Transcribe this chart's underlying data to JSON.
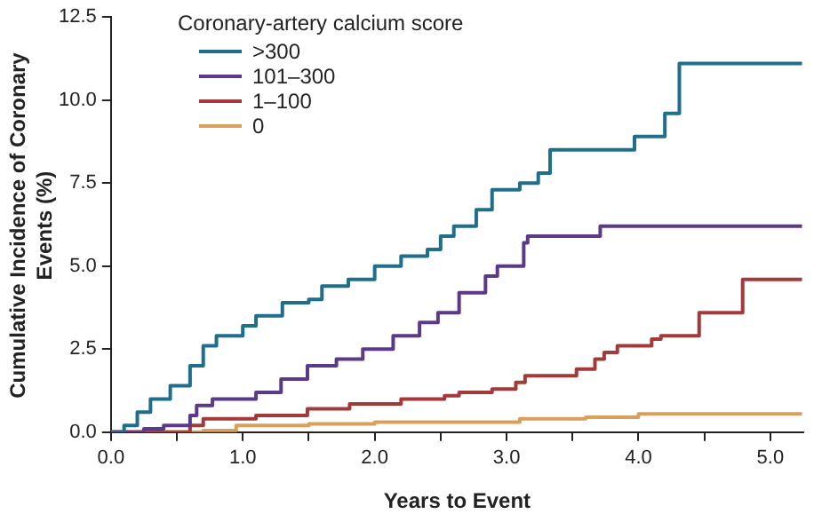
{
  "chart_data": {
    "type": "step",
    "xlabel": "Years to Event",
    "ylabel": "Cumulative Incidence of Coronary Events (%)",
    "legend_title": "Coronary-artery calcium score",
    "legend": "top left",
    "grid": false,
    "xlim": [
      0,
      5.25
    ],
    "ylim": [
      0,
      12.5
    ],
    "xticks": [
      {
        "value": 0,
        "label": "0.0"
      },
      {
        "value": 0.5,
        "label": null
      },
      {
        "value": 1,
        "label": "1.0"
      },
      {
        "value": 1.5,
        "label": null
      },
      {
        "value": 2,
        "label": "2.0"
      },
      {
        "value": 2.5,
        "label": null
      },
      {
        "value": 3,
        "label": "3.0"
      },
      {
        "value": 3.5,
        "label": null
      },
      {
        "value": 4,
        "label": "4.0"
      },
      {
        "value": 4.5,
        "label": null
      },
      {
        "value": 5,
        "label": "5.0"
      }
    ],
    "yticks": [
      {
        "value": 0,
        "label": "0.0"
      },
      {
        "value": 2.5,
        "label": "2.5"
      },
      {
        "value": 5,
        "label": "5.0"
      },
      {
        "value": 7.5,
        "label": "7.5"
      },
      {
        "value": 10,
        "label": "10.0"
      },
      {
        "value": 12.5,
        "label": "12.5"
      }
    ],
    "series": [
      {
        "name": ">300",
        "color": "#1f6e8c",
        "x": [
          0,
          0.1,
          0.2,
          0.3,
          0.45,
          0.6,
          0.7,
          0.8,
          1.0,
          1.1,
          1.3,
          1.5,
          1.6,
          1.8,
          2.0,
          2.2,
          2.4,
          2.5,
          2.6,
          2.77,
          2.89,
          3.1,
          3.24,
          3.33,
          3.97,
          4.2,
          4.31,
          5.24
        ],
        "values": [
          0,
          0.2,
          0.6,
          1.0,
          1.4,
          2.0,
          2.6,
          2.9,
          3.2,
          3.5,
          3.9,
          4.0,
          4.4,
          4.6,
          5.0,
          5.3,
          5.5,
          5.9,
          6.2,
          6.7,
          7.3,
          7.5,
          7.8,
          8.5,
          8.9,
          9.6,
          11.1,
          11.1
        ]
      },
      {
        "name": "101–300",
        "color": "#5b3a8a",
        "x": [
          0,
          0.25,
          0.4,
          0.6,
          0.65,
          0.77,
          1.1,
          1.29,
          1.49,
          1.71,
          1.91,
          2.14,
          2.34,
          2.48,
          2.64,
          2.84,
          2.93,
          3.13,
          3.16,
          3.71,
          5.24
        ],
        "values": [
          0,
          0.1,
          0.2,
          0.5,
          0.8,
          1.0,
          1.2,
          1.6,
          2.0,
          2.2,
          2.5,
          2.9,
          3.3,
          3.6,
          4.2,
          4.7,
          5.0,
          5.7,
          5.9,
          6.2,
          6.2
        ]
      },
      {
        "name": "1–100",
        "color": "#a33a3a",
        "x": [
          0,
          0.6,
          0.7,
          1.1,
          1.49,
          1.81,
          2.2,
          2.53,
          2.64,
          2.89,
          3.07,
          3.14,
          3.53,
          3.67,
          3.74,
          3.84,
          4.1,
          4.17,
          4.46,
          4.79,
          5.24
        ],
        "values": [
          0,
          0.2,
          0.4,
          0.5,
          0.7,
          0.85,
          1.0,
          1.1,
          1.2,
          1.3,
          1.5,
          1.7,
          1.9,
          2.2,
          2.4,
          2.6,
          2.8,
          2.9,
          3.6,
          4.6,
          4.6
        ]
      },
      {
        "name": "0",
        "color": "#d9a05b",
        "x": [
          0,
          0.7,
          0.95,
          1.5,
          2.0,
          3.1,
          3.6,
          4.0,
          5.24
        ],
        "values": [
          0,
          0.05,
          0.2,
          0.25,
          0.3,
          0.4,
          0.45,
          0.55,
          0.55
        ]
      }
    ]
  }
}
